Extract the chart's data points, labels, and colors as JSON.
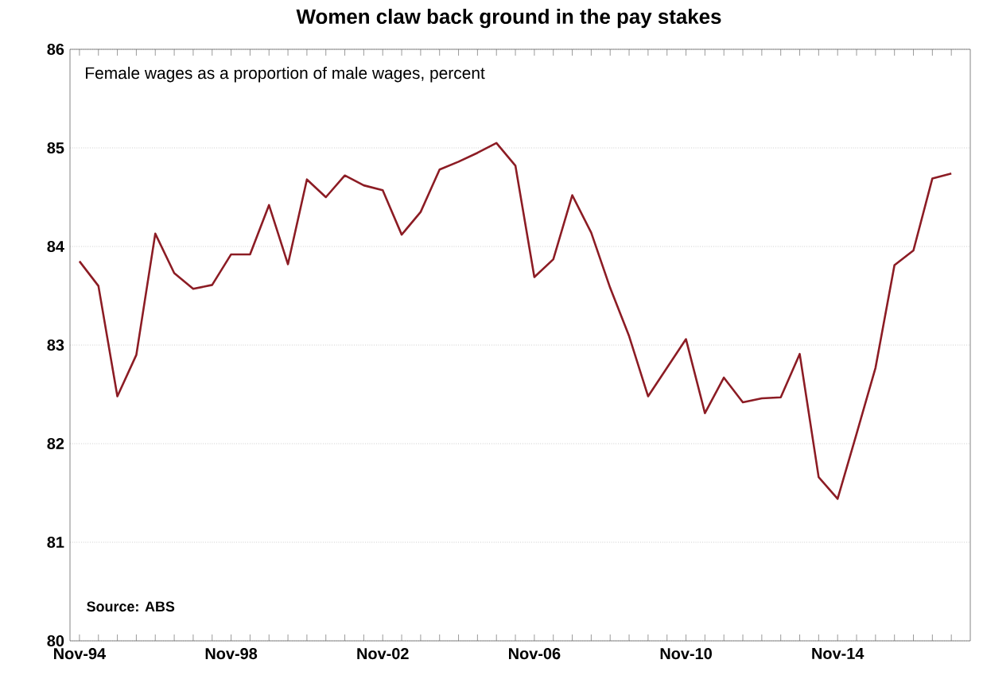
{
  "chart_data": {
    "type": "line",
    "title": "Women claw back ground in the pay stakes",
    "subtitle": "Female wages as a proportion of male wages, percent",
    "annotations": [
      "Source: ABS"
    ],
    "categories": [
      "Nov-94",
      null,
      null,
      null,
      null,
      null,
      null,
      null,
      "Nov-98",
      null,
      null,
      null,
      null,
      null,
      null,
      null,
      "Nov-02",
      null,
      null,
      null,
      null,
      null,
      null,
      null,
      "Nov-06",
      null,
      null,
      null,
      null,
      null,
      null,
      null,
      "Nov-10",
      null,
      null,
      null,
      null,
      null,
      null,
      null,
      "Nov-14",
      null,
      null,
      null,
      null,
      null,
      null
    ],
    "series": [
      {
        "color": "#8c1c24",
        "values": [
          83.85,
          83.6,
          82.48,
          82.9,
          84.13,
          83.73,
          83.57,
          83.61,
          83.92,
          83.92,
          84.42,
          83.82,
          84.68,
          84.5,
          84.72,
          84.62,
          84.57,
          84.12,
          84.35,
          84.78,
          84.86,
          84.95,
          85.05,
          84.82,
          83.69,
          83.87,
          84.52,
          84.14,
          83.58,
          83.09,
          82.48,
          82.77,
          83.06,
          82.31,
          82.67,
          82.42,
          82.46,
          82.47,
          82.91,
          81.66,
          81.44,
          82.1,
          82.77,
          83.81,
          83.96,
          84.69,
          84.74
        ]
      }
    ],
    "ylim": [
      80,
      86
    ],
    "yticks": [
      80,
      81,
      82,
      83,
      84,
      85,
      86
    ],
    "grid": "y",
    "line_style": "solid"
  }
}
